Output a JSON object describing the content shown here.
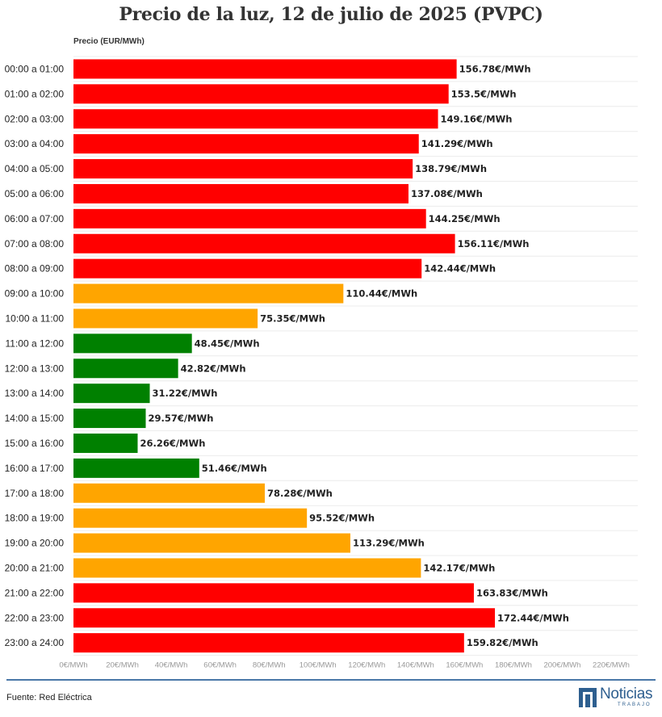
{
  "title": "Precio de la luz, 12 de julio de 2025 (PVPC)",
  "source": "Fuente: Red Eléctrica",
  "logo": {
    "main": "Noticias",
    "sub": "TRABAJO"
  },
  "colors": {
    "high": "#ff0000",
    "mid": "#ffa500",
    "low": "#008000",
    "divider": "#4a78a8",
    "logo": "#2e5f8f"
  },
  "chart_data": {
    "type": "bar",
    "orientation": "horizontal",
    "ylabel": "Precio (EUR/MWh)",
    "xlim": [
      0,
      220
    ],
    "grid": true,
    "categories": [
      "00:00 a 01:00",
      "01:00 a 02:00",
      "02:00 a 03:00",
      "03:00 a 04:00",
      "04:00 a 05:00",
      "05:00 a 06:00",
      "06:00 a 07:00",
      "07:00 a 08:00",
      "08:00 a 09:00",
      "09:00 a 10:00",
      "10:00 a 11:00",
      "11:00 a 12:00",
      "12:00 a 13:00",
      "13:00 a 14:00",
      "14:00 a 15:00",
      "15:00 a 16:00",
      "16:00 a 17:00",
      "17:00 a 18:00",
      "18:00 a 19:00",
      "19:00 a 20:00",
      "20:00 a 21:00",
      "21:00 a 22:00",
      "22:00 a 23:00",
      "23:00 a 24:00"
    ],
    "values": [
      156.78,
      153.5,
      149.16,
      141.29,
      138.79,
      137.08,
      144.25,
      156.11,
      142.44,
      110.44,
      75.35,
      48.45,
      42.82,
      31.22,
      29.57,
      26.26,
      51.46,
      78.28,
      95.52,
      113.29,
      142.17,
      163.83,
      172.44,
      159.82
    ],
    "value_labels": [
      "156.78€/MWh",
      "153.5€/MWh",
      "149.16€/MWh",
      "141.29€/MWh",
      "138.79€/MWh",
      "137.08€/MWh",
      "144.25€/MWh",
      "156.11€/MWh",
      "142.44€/MWh",
      "110.44€/MWh",
      "75.35€/MWh",
      "48.45€/MWh",
      "42.82€/MWh",
      "31.22€/MWh",
      "29.57€/MWh",
      "26.26€/MWh",
      "51.46€/MWh",
      "78.28€/MWh",
      "95.52€/MWh",
      "113.29€/MWh",
      "142.17€/MWh",
      "163.83€/MWh",
      "172.44€/MWh",
      "159.82€/MWh"
    ],
    "bar_colors": [
      "high",
      "high",
      "high",
      "high",
      "high",
      "high",
      "high",
      "high",
      "high",
      "mid",
      "mid",
      "low",
      "low",
      "low",
      "low",
      "low",
      "low",
      "mid",
      "mid",
      "mid",
      "mid",
      "high",
      "high",
      "high"
    ],
    "ticks": [
      0,
      20,
      40,
      60,
      80,
      100,
      120,
      140,
      160,
      180,
      200,
      220
    ],
    "tick_labels": [
      "0€/MWh",
      "20€/MWh",
      "40€/MWh",
      "60€/MWh",
      "80€/MWh",
      "100€/MWh",
      "120€/MWh",
      "140€/MWh",
      "160€/MWh",
      "180€/MWh",
      "200€/MWh",
      "220€/MWh"
    ]
  }
}
